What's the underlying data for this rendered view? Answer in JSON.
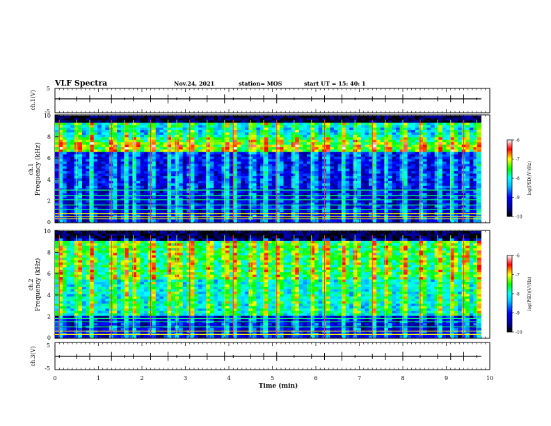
{
  "header": {
    "title": "VLF Spectra",
    "date": "Nov.24, 2021",
    "station": "station= MOS",
    "start": "start  UT =  15: 40: 1"
  },
  "colors": {
    "colormap": [
      "#000000",
      "#00008b",
      "#0000ff",
      "#00bfff",
      "#00ffff",
      "#00ff00",
      "#ffff00",
      "#ff0000",
      "#ffffff"
    ],
    "frame": "#000000"
  },
  "chart_data": [
    {
      "type": "line",
      "panel": "ch1-waveform",
      "ylabel": "ch.1(V)",
      "ylim": [
        -5,
        5
      ],
      "yticks": [
        "5",
        "-5"
      ],
      "x": [
        0,
        1,
        2,
        3,
        4,
        5,
        6,
        7,
        8,
        9,
        9.8
      ],
      "values": [
        0,
        0,
        0,
        0,
        0,
        0,
        0,
        0,
        0,
        0,
        0
      ],
      "xlim": [
        0,
        10
      ]
    },
    {
      "type": "heatmap",
      "panel": "ch1-spectrogram",
      "ylabel": "ch.1",
      "ylabel2": "Frequency (kHz)",
      "ylim": [
        0,
        10
      ],
      "xlim": [
        0,
        10
      ],
      "data_end_min": 9.8,
      "yticks": [
        "0",
        "2",
        "4",
        "6",
        "8",
        "10"
      ],
      "colorbar": {
        "label": "log(PSD)(V²/Hz)",
        "range": [
          -10,
          -6
        ],
        "ticks": [
          "-6",
          "-7",
          "-8",
          "-9",
          "-10"
        ]
      },
      "bands_khz": [
        0.3,
        0.5,
        0.8,
        1.2,
        1.6,
        2.1,
        2.5,
        3.0
      ],
      "bursts_min": [
        0.1,
        0.5,
        0.8,
        1.3,
        1.6,
        1.8,
        2.2,
        2.6,
        2.8,
        3.1,
        3.5,
        3.9,
        4.1,
        4.5,
        4.8,
        5.1,
        5.5,
        5.9,
        6.2,
        6.6,
        6.9,
        7.3,
        7.6,
        8.0,
        8.4,
        8.8,
        9.1,
        9.4,
        9.7
      ]
    },
    {
      "type": "heatmap",
      "panel": "ch2-spectrogram",
      "ylabel": "ch.2",
      "ylabel2": "Frequency (kHz)",
      "ylim": [
        0,
        10
      ],
      "xlim": [
        0,
        10
      ],
      "data_end_min": 9.8,
      "yticks": [
        "0",
        "2",
        "4",
        "6",
        "8",
        "10"
      ],
      "colorbar": {
        "label": "log(PSD)(V²/Hz)",
        "range": [
          -10,
          -6
        ],
        "ticks": [
          "-6",
          "-7",
          "-8",
          "-9",
          "-10"
        ]
      },
      "bands_khz": [
        0.3,
        0.6,
        1.0,
        1.5,
        1.8
      ],
      "bursts_min": [
        0.1,
        0.5,
        0.8,
        1.3,
        1.6,
        1.8,
        2.2,
        2.6,
        2.8,
        3.1,
        3.5,
        3.9,
        4.1,
        4.5,
        4.8,
        5.1,
        5.5,
        5.9,
        6.2,
        6.6,
        6.9,
        7.3,
        7.6,
        8.0,
        8.4,
        8.8,
        9.1,
        9.4,
        9.7
      ]
    },
    {
      "type": "line",
      "panel": "ch3-waveform",
      "ylabel": "ch.3(V)",
      "ylim": [
        -5,
        5
      ],
      "yticks": [
        "5",
        "-5"
      ],
      "x": [
        0,
        1,
        2,
        3,
        4,
        5,
        6,
        7,
        8,
        9,
        9.8
      ],
      "values": [
        0,
        0,
        0,
        0,
        0,
        0,
        0,
        0,
        0,
        0,
        0
      ],
      "xlim": [
        0,
        10
      ]
    }
  ],
  "xaxis": {
    "label": "Time  (min)",
    "ticks": [
      "0",
      "1",
      "2",
      "3",
      "4",
      "5",
      "6",
      "7",
      "8",
      "9",
      "10"
    ]
  }
}
